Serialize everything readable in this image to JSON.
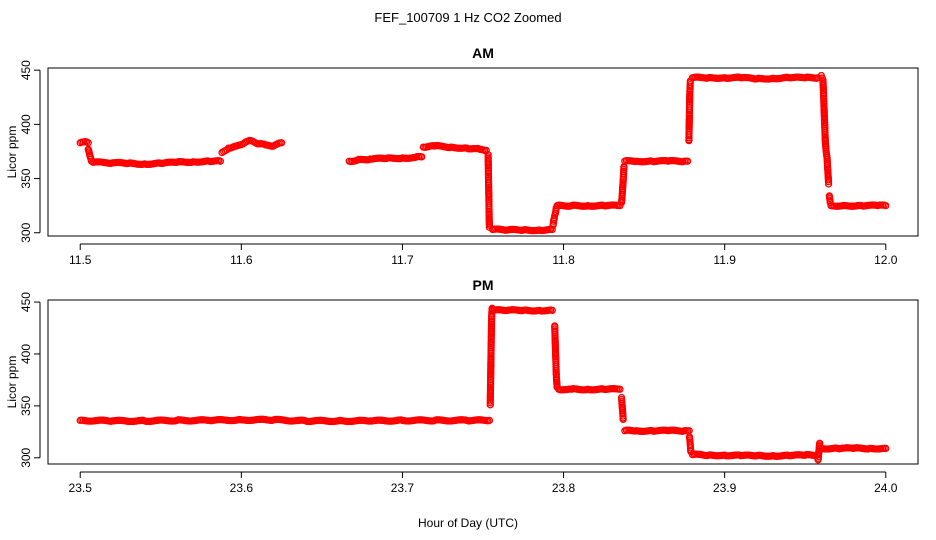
{
  "figure": {
    "title": "FEF_100709  1 Hz CO2 Zoomed",
    "xlabel": "Hour of Day (UTC)"
  },
  "chart_data": [
    {
      "type": "scatter",
      "title": "AM",
      "xlabel": "",
      "ylabel": "Licor ppm",
      "xlim": [
        11.48,
        12.02
      ],
      "ylim": [
        297,
        452
      ],
      "xticks": [
        "11.5",
        "11.6",
        "11.7",
        "11.8",
        "11.9",
        "12.0"
      ],
      "yticks": [
        "300",
        "350",
        "400",
        "450"
      ],
      "grid": false,
      "marker_color": "#ff0000",
      "marker": "open-circle",
      "segments": [
        {
          "x": [
            11.5,
            11.503,
            11.505
          ],
          "y": [
            383,
            384,
            383
          ]
        },
        {
          "x": [
            11.505,
            11.506,
            11.507
          ],
          "y": [
            377,
            371,
            366
          ]
        },
        {
          "x": [
            11.508,
            11.52,
            11.53,
            11.54,
            11.55,
            11.56,
            11.57,
            11.58,
            11.587
          ],
          "y": [
            365,
            364.5,
            364,
            363.5,
            364,
            365,
            365.5,
            366,
            366
          ]
        },
        {
          "x": [
            11.588,
            11.592,
            11.597,
            11.602,
            11.606,
            11.611,
            11.615,
            11.62,
            11.625
          ],
          "y": [
            374,
            378,
            380,
            383,
            385,
            382,
            381,
            380,
            383
          ]
        },
        {
          "x": [
            11.667,
            11.672,
            11.68,
            11.69,
            11.7,
            11.708,
            11.712
          ],
          "y": [
            366,
            367,
            368,
            368.5,
            369,
            369.5,
            370
          ]
        },
        {
          "x": [
            11.713,
            11.72,
            11.73,
            11.74,
            11.748,
            11.752
          ],
          "y": [
            379,
            380,
            379,
            378,
            377,
            376
          ]
        },
        {
          "x": [
            11.7532,
            11.7534,
            11.7536,
            11.7538,
            11.754
          ],
          "y": [
            372,
            352,
            336,
            316,
            305
          ]
        },
        {
          "x": [
            11.756,
            11.765,
            11.775,
            11.785,
            11.793
          ],
          "y": [
            303,
            302.5,
            302.5,
            302.5,
            303
          ]
        },
        {
          "x": [
            11.7935,
            11.794,
            11.7945,
            11.795,
            11.7955
          ],
          "y": [
            307,
            312,
            316,
            318,
            323
          ]
        },
        {
          "x": [
            11.796,
            11.805,
            11.815,
            11.825,
            11.835
          ],
          "y": [
            325,
            325,
            325,
            325,
            325
          ]
        },
        {
          "x": [
            11.836,
            11.8365,
            11.837,
            11.8375
          ],
          "y": [
            328,
            337,
            348,
            361
          ]
        },
        {
          "x": [
            11.838,
            11.845,
            11.855,
            11.865,
            11.875,
            11.877
          ],
          "y": [
            366,
            366,
            366,
            366,
            366,
            366
          ]
        },
        {
          "x": [
            11.8778,
            11.8781,
            11.8784,
            11.8787
          ],
          "y": [
            385,
            408,
            430,
            440
          ]
        },
        {
          "x": [
            11.88,
            11.89,
            11.9,
            11.91,
            11.92,
            11.93,
            11.94,
            11.95,
            11.958
          ],
          "y": [
            443,
            443,
            443,
            443,
            442,
            442.5,
            443,
            443,
            443
          ]
        },
        {
          "x": [
            11.96,
            11.961,
            11.9615,
            11.962,
            11.9625,
            11.963,
            11.9635,
            11.964,
            11.9645
          ],
          "y": [
            445,
            441,
            423,
            402,
            384,
            375,
            370,
            358,
            345
          ]
        },
        {
          "x": [
            11.965,
            11.9655
          ],
          "y": [
            334,
            328
          ]
        },
        {
          "x": [
            11.966,
            11.975,
            11.985,
            11.995,
            12.0
          ],
          "y": [
            325,
            325,
            325,
            325,
            325
          ]
        }
      ]
    },
    {
      "type": "scatter",
      "title": "PM",
      "xlabel": "",
      "ylabel": "Licor ppm",
      "xlim": [
        23.48,
        24.02
      ],
      "ylim": [
        294,
        452
      ],
      "xticks": [
        "23.5",
        "23.6",
        "23.7",
        "23.8",
        "23.9",
        "24.0"
      ],
      "yticks": [
        "300",
        "350",
        "400",
        "450"
      ],
      "grid": false,
      "marker_color": "#ff0000",
      "marker": "open-circle",
      "segments": [
        {
          "x": [
            23.5,
            23.52,
            23.54,
            23.56,
            23.58,
            23.6,
            23.62,
            23.64,
            23.66,
            23.68,
            23.7,
            23.72,
            23.74,
            23.754
          ],
          "y": [
            336,
            335.5,
            335.5,
            336,
            336,
            336.5,
            336.5,
            335.5,
            335.5,
            335.5,
            336,
            336,
            336,
            336
          ]
        },
        {
          "x": [
            23.7545,
            23.7548,
            23.7551,
            23.7554,
            23.7557
          ],
          "y": [
            351,
            381,
            412,
            437,
            444
          ]
        },
        {
          "x": [
            23.756,
            23.765,
            23.775,
            23.785,
            23.793
          ],
          "y": [
            442,
            442,
            442,
            442,
            442
          ]
        },
        {
          "x": [
            23.7945,
            23.795,
            23.7955,
            23.796
          ],
          "y": [
            427,
            403,
            380,
            368
          ]
        },
        {
          "x": [
            23.797,
            23.805,
            23.815,
            23.825,
            23.835
          ],
          "y": [
            366,
            366,
            366,
            366,
            366
          ]
        },
        {
          "x": [
            23.836,
            23.8365,
            23.837
          ],
          "y": [
            358,
            348,
            337
          ]
        },
        {
          "x": [
            23.838,
            23.845,
            23.855,
            23.865,
            23.875,
            23.878
          ],
          "y": [
            326,
            326,
            326,
            326,
            326,
            326
          ]
        },
        {
          "x": [
            23.8782,
            23.8786,
            23.879
          ],
          "y": [
            320,
            313,
            306
          ]
        },
        {
          "x": [
            23.88,
            23.89,
            23.9,
            23.91,
            23.92,
            23.93,
            23.94,
            23.95,
            23.957
          ],
          "y": [
            303,
            302.5,
            302.5,
            302,
            302,
            302,
            302,
            302.5,
            302.5
          ]
        },
        {
          "x": [
            23.958,
            23.959
          ],
          "y": [
            298,
            314
          ]
        },
        {
          "x": [
            23.96,
            23.97,
            23.98,
            23.99,
            24.0
          ],
          "y": [
            309,
            309,
            309,
            309,
            309
          ]
        }
      ]
    }
  ]
}
